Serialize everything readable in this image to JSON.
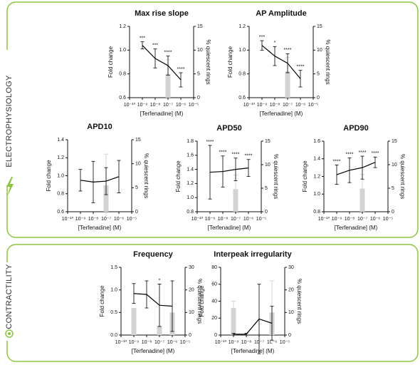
{
  "sections": [
    "ELECTROPHYSIOLOGY",
    "CONTRACTILITY"
  ],
  "chart_data": [
    {
      "type": "line",
      "title": "Max rise slope",
      "xlabel": "[Terfenadine] (M)",
      "ylabel": "Fold change",
      "y2label": "% quiescent rings",
      "x": [
        1e-09,
        1e-08,
        1e-07,
        1e-06
      ],
      "log_x": true,
      "xlim": [
        1e-10,
        1e-05
      ],
      "xticks": [
        {
          "value": 1e-10,
          "label": "10⁻¹⁰"
        },
        {
          "value": 1e-09,
          "label": "10⁻⁹"
        },
        {
          "value": 1e-08,
          "label": "10⁻⁸"
        },
        {
          "value": 1e-07,
          "label": "10⁻⁷"
        },
        {
          "value": 1e-06,
          "label": "10⁻⁶"
        },
        {
          "value": 1e-05,
          "label": "10⁻⁵"
        }
      ],
      "ylim": [
        0.6,
        1.2
      ],
      "yticks": [
        0.6,
        0.8,
        {
          "value": 1.0,
          "label": "1.0"
        },
        1.2
      ],
      "y2lim": [
        0,
        15
      ],
      "y2ticks": [
        0,
        5,
        10,
        15
      ],
      "series": [
        {
          "type": "line",
          "color": "#000000",
          "values": [
            1.04,
            0.93,
            0.87,
            0.75
          ],
          "errors": [
            0.03,
            0.08,
            0.08,
            0.06
          ]
        },
        {
          "type": "bar",
          "axis": "y2",
          "color": "#d3d3d3",
          "values": [
            null,
            null,
            5,
            null
          ],
          "errors": [
            null,
            null,
            3,
            null
          ]
        }
      ],
      "annotations": [
        "***",
        "***",
        "****",
        "****"
      ]
    },
    {
      "type": "line",
      "title": "AP Amplitude",
      "xlabel": "[Terfenadine] (M)",
      "ylabel": "Fold change",
      "y2label": "% quiescent rings",
      "x": [
        1e-09,
        1e-08,
        1e-07,
        1e-06
      ],
      "log_x": true,
      "xlim": [
        1e-10,
        1e-05
      ],
      "xticks": [
        {
          "value": 1e-10,
          "label": "10⁻¹⁰"
        },
        {
          "value": 1e-09,
          "label": "10⁻⁹"
        },
        {
          "value": 1e-08,
          "label": "10⁻⁸"
        },
        {
          "value": 1e-07,
          "label": "10⁻⁷"
        },
        {
          "value": 1e-06,
          "label": "10⁻⁶"
        },
        {
          "value": 1e-05,
          "label": "10⁻⁵"
        }
      ],
      "ylim": [
        0.6,
        1.2
      ],
      "yticks": [
        0.6,
        0.8,
        {
          "value": 1.0,
          "label": "1.0"
        },
        1.2
      ],
      "y2lim": [
        0,
        15
      ],
      "y2ticks": [
        0,
        5,
        10,
        15
      ],
      "series": [
        {
          "type": "line",
          "color": "#000000",
          "values": [
            1.04,
            0.95,
            0.89,
            0.76
          ],
          "errors": [
            0.04,
            0.08,
            0.08,
            0.07
          ]
        },
        {
          "type": "bar",
          "axis": "y2",
          "color": "#d3d3d3",
          "values": [
            null,
            null,
            5.5,
            null
          ],
          "errors": [
            null,
            null,
            3,
            null
          ]
        }
      ],
      "annotations": [
        "***",
        "*",
        "****",
        "****"
      ]
    },
    {
      "type": "line",
      "title": "APD10",
      "xlabel": "[Terfenadine] (M)",
      "ylabel": "Fold change",
      "y2label": "% quiescent rings",
      "x": [
        1e-09,
        1e-08,
        1e-07,
        1e-06
      ],
      "log_x": true,
      "xlim": [
        1e-10,
        1e-05
      ],
      "xticks": [
        {
          "value": 1e-10,
          "label": "10⁻¹⁰"
        },
        {
          "value": 1e-09,
          "label": "10⁻⁹"
        },
        {
          "value": 1e-08,
          "label": "10⁻⁸"
        },
        {
          "value": 1e-07,
          "label": "10⁻⁷"
        },
        {
          "value": 1e-06,
          "label": "10⁻⁶"
        },
        {
          "value": 1e-05,
          "label": "10⁻⁵"
        }
      ],
      "ylim": [
        0.6,
        1.4
      ],
      "yticks": [
        0.6,
        0.8,
        {
          "value": 1.0,
          "label": "1.0"
        },
        1.2,
        1.4
      ],
      "y2lim": [
        0,
        15
      ],
      "y2ticks": [
        0,
        5,
        10,
        15
      ],
      "series": [
        {
          "type": "line",
          "color": "#000000",
          "values": [
            0.95,
            0.93,
            0.94,
            0.99
          ],
          "errors": [
            0.12,
            0.23,
            0.15,
            0.18
          ]
        },
        {
          "type": "bar",
          "axis": "y2",
          "color": "#d3d3d3",
          "values": [
            null,
            null,
            5.5,
            null
          ],
          "errors": [
            null,
            null,
            6.5,
            null
          ]
        }
      ],
      "annotations": [
        null,
        null,
        null,
        null
      ]
    },
    {
      "type": "line",
      "title": "APD50",
      "xlabel": "[Terfenadine] (M)",
      "ylabel": "Fold change",
      "y2label": "% quiescent rings",
      "x": [
        1e-09,
        1e-08,
        1e-07,
        1e-06
      ],
      "log_x": true,
      "xlim": [
        1e-10,
        1e-05
      ],
      "xticks": [
        {
          "value": 1e-10,
          "label": "10⁻¹⁰"
        },
        {
          "value": 1e-09,
          "label": "10⁻⁹"
        },
        {
          "value": 1e-08,
          "label": "10⁻⁸"
        },
        {
          "value": 1e-07,
          "label": "10⁻⁷"
        },
        {
          "value": 1e-06,
          "label": "10⁻⁶"
        },
        {
          "value": 1e-05,
          "label": "10⁻⁵"
        }
      ],
      "ylim": [
        0.8,
        1.8
      ],
      "yticks": [
        0.8,
        {
          "value": 1.0,
          "label": "1.0"
        },
        1.2,
        1.4,
        1.6,
        1.8
      ],
      "y2lim": [
        0,
        15
      ],
      "y2ticks": [
        0,
        5,
        10,
        15
      ],
      "series": [
        {
          "type": "line",
          "color": "#000000",
          "values": [
            1.36,
            1.37,
            1.4,
            1.42
          ],
          "errors": [
            0.38,
            0.22,
            0.16,
            0.12
          ]
        },
        {
          "type": "bar",
          "axis": "y2",
          "color": "#d3d3d3",
          "values": [
            null,
            null,
            4.8,
            null
          ],
          "errors": [
            null,
            null,
            3,
            null
          ]
        }
      ],
      "annotations": [
        "****",
        "****",
        "****",
        "****"
      ]
    },
    {
      "type": "line",
      "title": "APD90",
      "xlabel": "[Terfenadine] (M)",
      "ylabel": "Fold change",
      "y2label": "% quiescent rings",
      "x": [
        1e-09,
        1e-08,
        1e-07,
        1e-06
      ],
      "log_x": true,
      "xlim": [
        1e-10,
        1e-05
      ],
      "xticks": [
        {
          "value": 1e-10,
          "label": "10⁻¹⁰"
        },
        {
          "value": 1e-09,
          "label": "10⁻⁹"
        },
        {
          "value": 1e-08,
          "label": "10⁻⁸"
        },
        {
          "value": 1e-07,
          "label": "10⁻⁷"
        },
        {
          "value": 1e-06,
          "label": "10⁻⁶"
        },
        {
          "value": 1e-05,
          "label": "10⁻⁵"
        }
      ],
      "ylim": [
        0.8,
        1.6
      ],
      "yticks": [
        0.8,
        {
          "value": 1.0,
          "label": "1.0"
        },
        1.2,
        1.4,
        1.6
      ],
      "y2lim": [
        0,
        15
      ],
      "y2ticks": [
        0,
        5,
        10,
        15
      ],
      "series": [
        {
          "type": "line",
          "color": "#000000",
          "values": [
            1.22,
            1.27,
            1.3,
            1.36
          ],
          "errors": [
            0.11,
            0.14,
            0.13,
            0.06
          ]
        },
        {
          "type": "bar",
          "axis": "y2",
          "color": "#d3d3d3",
          "values": [
            null,
            null,
            4.9,
            null
          ],
          "errors": [
            null,
            null,
            3,
            null
          ]
        }
      ],
      "annotations": [
        "****",
        "****",
        "****",
        "****"
      ]
    },
    {
      "type": "line",
      "title": "Frequency",
      "xlabel": "[Terfenadine] (M)",
      "ylabel": "Fold change",
      "y2label": "% quiescent rings",
      "x": [
        1e-09,
        1e-08,
        1e-07,
        1e-06
      ],
      "log_x": true,
      "xlim": [
        1e-10,
        1e-05
      ],
      "xticks": [
        {
          "value": 1e-10,
          "label": "10⁻¹⁰"
        },
        {
          "value": 1e-09,
          "label": "10⁻⁹"
        },
        {
          "value": 1e-08,
          "label": "10⁻⁸"
        },
        {
          "value": 1e-07,
          "label": "10⁻⁷"
        },
        {
          "value": 1e-06,
          "label": "10⁻⁶"
        },
        {
          "value": 1e-05,
          "label": "10⁻⁵"
        }
      ],
      "ylim": [
        0,
        1.5
      ],
      "yticks": [
        {
          "value": 0,
          "label": "0.0"
        },
        0.5,
        {
          "value": 1.0,
          "label": "1.0"
        },
        1.5
      ],
      "y2lim": [
        0,
        30
      ],
      "y2ticks": [
        0,
        10,
        20,
        30
      ],
      "series": [
        {
          "type": "line",
          "color": "#000000",
          "values": [
            0.92,
            0.9,
            0.66,
            0.64
          ],
          "errors": [
            0.22,
            0.3,
            0.47,
            0.56
          ]
        },
        {
          "type": "bar",
          "axis": "y2",
          "color": "#d3d3d3",
          "values": [
            12,
            null,
            4,
            10
          ],
          "errors": [
            null,
            null,
            null,
            null
          ]
        }
      ],
      "annotations": [
        null,
        null,
        "*",
        null
      ]
    },
    {
      "type": "line",
      "title": "Interpeak irregularity",
      "xlabel": "[Terfenadine] (M)",
      "ylabel": "Fold change",
      "y2label": "% quiescent rings",
      "x": [
        1e-09,
        1e-08,
        1e-07,
        1e-06
      ],
      "log_x": true,
      "xlim": [
        1e-10,
        1e-05
      ],
      "xticks": [
        {
          "value": 1e-10,
          "label": "10⁻¹⁰"
        },
        {
          "value": 1e-09,
          "label": "10⁻⁹"
        },
        {
          "value": 1e-08,
          "label": "10⁻⁸"
        },
        {
          "value": 1e-07,
          "label": "10⁻⁷"
        },
        {
          "value": 1e-06,
          "label": "10⁻⁶"
        },
        {
          "value": 1e-05,
          "label": "10⁻⁵"
        }
      ],
      "ylim": [
        0,
        80
      ],
      "yticks": [
        0,
        20,
        40,
        60,
        80
      ],
      "y2lim": [
        0,
        30
      ],
      "y2ticks": [
        0,
        10,
        20,
        30
      ],
      "series": [
        {
          "type": "line",
          "color": "#000000",
          "values": [
            1,
            1,
            19,
            14
          ],
          "errors": [
            1,
            1,
            41,
            20
          ]
        },
        {
          "type": "bar",
          "axis": "y2",
          "color": "#d3d3d3",
          "values": [
            12,
            null,
            null,
            10
          ],
          "errors": [
            3,
            null,
            null,
            14
          ]
        }
      ],
      "annotations": [
        null,
        null,
        null,
        null
      ]
    }
  ]
}
